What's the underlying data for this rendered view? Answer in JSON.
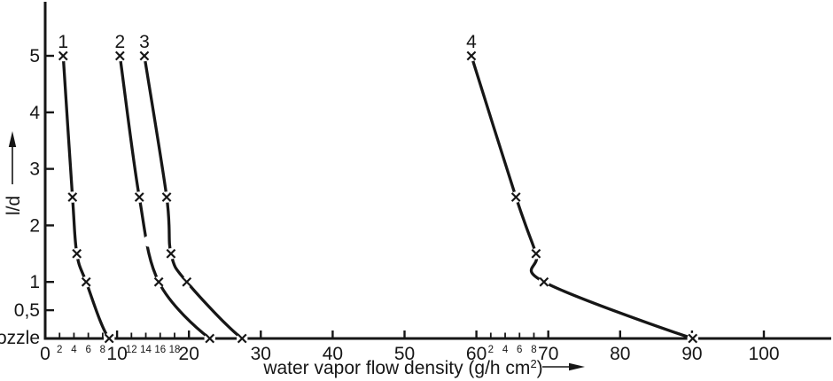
{
  "figure": {
    "background": "#ffffff",
    "ink_color": "#161616"
  },
  "chart_data": {
    "type": "line",
    "title": "",
    "xlabel": {
      "text": "water vapor flow density (g/h cm",
      "superscript": "2",
      "suffix": ")"
    },
    "ylabel": "l/d",
    "y_zero_label": "nozzle",
    "xlim": [
      0,
      109
    ],
    "ylim": [
      0,
      6
    ],
    "grid": false,
    "legend_position": "curve-top-labels",
    "marker": "x",
    "x_major_ticks": [
      {
        "v": 0,
        "label": "0"
      },
      {
        "v": 10,
        "label": "10"
      },
      {
        "v": 20,
        "label": "20"
      },
      {
        "v": 30,
        "label": "30"
      },
      {
        "v": 40,
        "label": "40"
      },
      {
        "v": 50,
        "label": "50"
      },
      {
        "v": 60,
        "label": "60"
      },
      {
        "v": 70,
        "label": "70"
      },
      {
        "v": 80,
        "label": "80"
      },
      {
        "v": 90,
        "label": "90"
      },
      {
        "v": 100,
        "label": "100"
      }
    ],
    "x_minor_ticks": [
      {
        "v": 2,
        "label": "2"
      },
      {
        "v": 4,
        "label": "4"
      },
      {
        "v": 6,
        "label": "6"
      },
      {
        "v": 8,
        "label": "8"
      },
      {
        "v": 12,
        "label": "12"
      },
      {
        "v": 14,
        "label": "14"
      },
      {
        "v": 16,
        "label": "16"
      },
      {
        "v": 18,
        "label": "18"
      },
      {
        "v": 62,
        "label": "2"
      },
      {
        "v": 64,
        "label": "4"
      },
      {
        "v": 66,
        "label": "6"
      },
      {
        "v": 68,
        "label": "8"
      }
    ],
    "y_ticks": [
      {
        "v": 5,
        "label": "5"
      },
      {
        "v": 4,
        "label": "4"
      },
      {
        "v": 3,
        "label": "3"
      },
      {
        "v": 2,
        "label": "2"
      },
      {
        "v": 1,
        "label": "1"
      },
      {
        "v": 0.5,
        "label": "0,5"
      }
    ],
    "series": [
      {
        "name": "1",
        "points": [
          [
            2.5,
            5
          ],
          [
            3.8,
            2.5
          ],
          [
            4.4,
            1.5
          ],
          [
            5.7,
            1
          ],
          [
            8.9,
            0
          ]
        ],
        "line_gaps": []
      },
      {
        "name": "2",
        "points": [
          [
            10.4,
            5
          ],
          [
            13.1,
            2.5
          ],
          [
            15.8,
            1
          ],
          [
            22.9,
            0
          ]
        ],
        "line_gaps": [
          [
            14.4,
            1.72
          ]
        ]
      },
      {
        "name": "3",
        "points": [
          [
            13.8,
            5
          ],
          [
            16.9,
            2.5
          ],
          [
            17.5,
            1.5
          ],
          [
            19.7,
            1
          ],
          [
            27.4,
            0
          ]
        ],
        "line_gaps": []
      },
      {
        "name": "4",
        "points": [
          [
            59.3,
            5
          ],
          [
            65.5,
            2.5
          ],
          [
            68.3,
            1.5
          ],
          [
            69.4,
            1
          ],
          [
            90.1,
            0
          ]
        ],
        "line_gaps": []
      }
    ]
  }
}
